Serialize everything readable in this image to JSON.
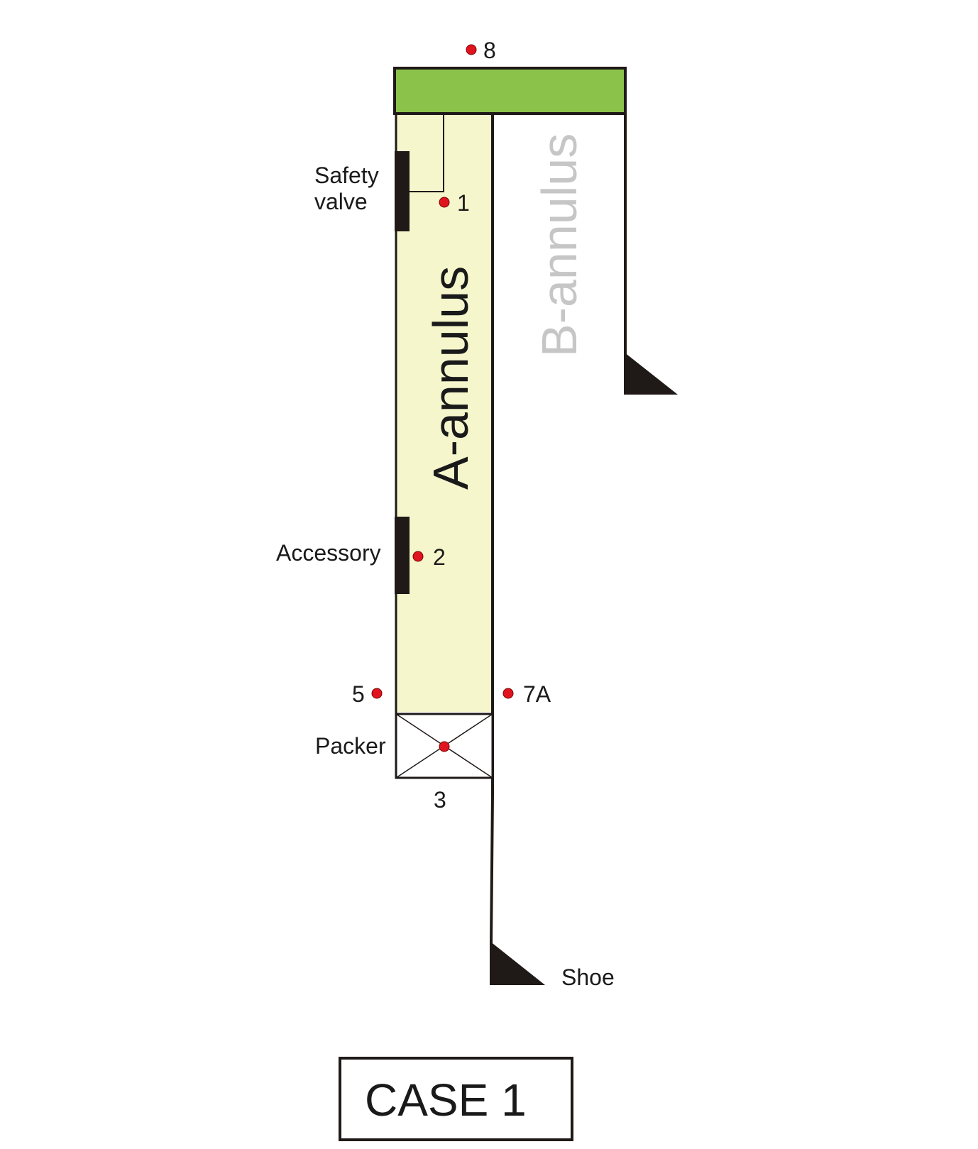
{
  "diagram": {
    "a_annulus_label": "A-annulus",
    "b_annulus_label": "B-annulus",
    "safety_valve_line1": "Safety",
    "safety_valve_line2": "valve",
    "accessory_label": "Accessory",
    "packer_label": "Packer",
    "shoe_label": "Shoe",
    "points": {
      "p1": "1",
      "p2": "2",
      "p3": "3",
      "p5": "5",
      "p7a": "7A",
      "p8": "8"
    },
    "case_label": "CASE 1"
  },
  "colors": {
    "wellhead_green": "#8bc34a",
    "a_annulus_fill": "#f5f6cc",
    "b_annulus_text": "#c6c6c6",
    "point_red": "#e0141e",
    "dark": "#1f1a17"
  }
}
